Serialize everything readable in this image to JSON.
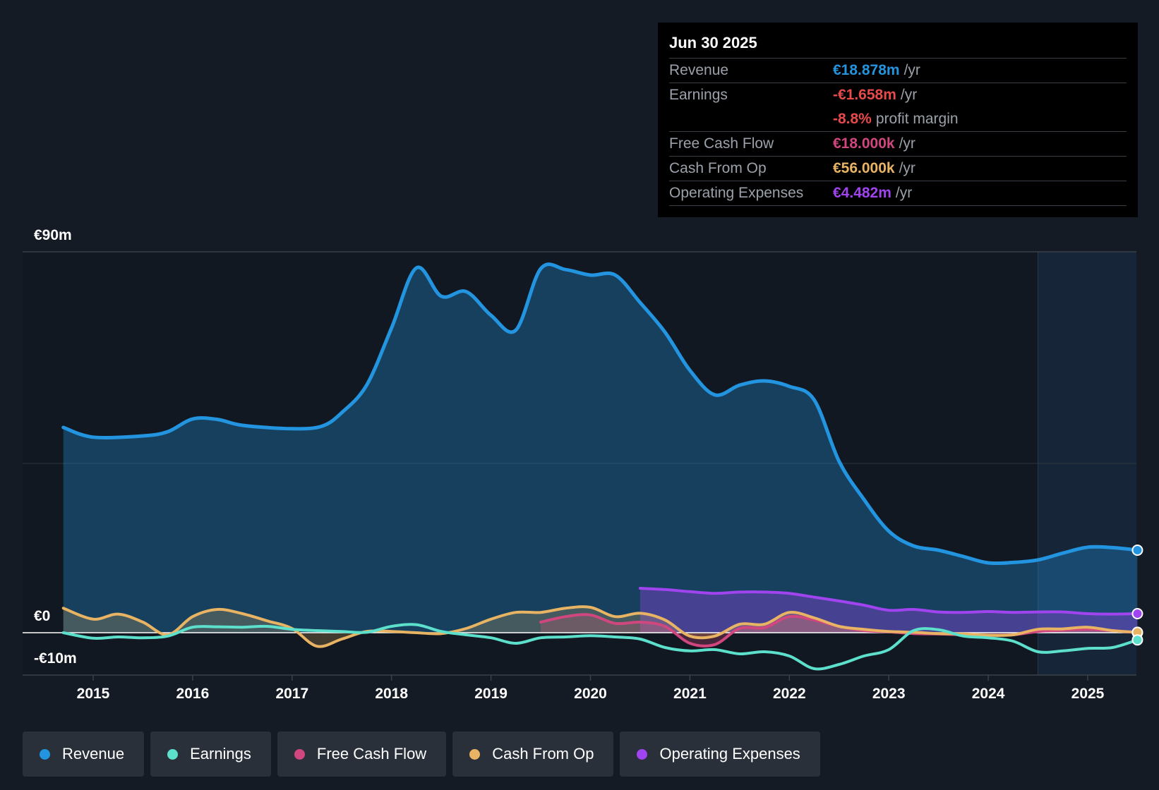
{
  "tooltip": {
    "date": "Jun 30 2025",
    "rows": [
      {
        "label": "Revenue",
        "value": "€18.878m",
        "unit": "/yr",
        "color": "#2394df"
      },
      {
        "label": "Earnings",
        "value": "-€1.658m",
        "unit": "/yr",
        "color": "#e64a4a"
      },
      {
        "label": "",
        "value": "-8.8%",
        "unit": "profit margin",
        "color": "#e64a4a"
      },
      {
        "label": "Free Cash Flow",
        "value": "€18.000k",
        "unit": "/yr",
        "color": "#d0477f"
      },
      {
        "label": "Cash From Op",
        "value": "€56.000k",
        "unit": "/yr",
        "color": "#e8b463"
      },
      {
        "label": "Operating Expenses",
        "value": "€4.482m",
        "unit": "/yr",
        "color": "#a044f0"
      }
    ]
  },
  "y_axis": {
    "top_label": "€90m",
    "zero_label": "€0",
    "bottom_label": "-€10m"
  },
  "legend": [
    {
      "label": "Revenue",
      "color": "#2394df"
    },
    {
      "label": "Earnings",
      "color": "#5ce0cc"
    },
    {
      "label": "Free Cash Flow",
      "color": "#d0477f"
    },
    {
      "label": "Cash From Op",
      "color": "#e8b463"
    },
    {
      "label": "Operating Expenses",
      "color": "#a044f0"
    }
  ],
  "chart_data": {
    "type": "line",
    "title": "",
    "xlabel": "",
    "ylabel": "",
    "ylim": [
      -10,
      90
    ],
    "x_range": [
      2014.5,
      2025.5
    ],
    "x_ticks": [
      "2015",
      "2016",
      "2017",
      "2018",
      "2019",
      "2020",
      "2021",
      "2022",
      "2023",
      "2024",
      "2025"
    ],
    "forecast_start": 2024.5,
    "series": [
      {
        "name": "Revenue",
        "color": "#2394df",
        "fill": true,
        "x": [
          2014.7,
          2015.0,
          2015.5,
          2015.75,
          2016.0,
          2016.25,
          2016.5,
          2017.0,
          2017.3,
          2017.5,
          2017.75,
          2018.0,
          2018.25,
          2018.5,
          2018.75,
          2019.0,
          2019.25,
          2019.5,
          2019.75,
          2020.0,
          2020.25,
          2020.5,
          2020.75,
          2021.0,
          2021.25,
          2021.5,
          2021.75,
          2022.0,
          2022.25,
          2022.5,
          2022.75,
          2023.0,
          2023.25,
          2023.5,
          2023.75,
          2024.0,
          2024.25,
          2024.5,
          2024.75,
          2025.0,
          2025.25,
          2025.5
        ],
        "values": [
          48.5,
          46.2,
          46.5,
          47.5,
          50.5,
          50.4,
          49,
          48.2,
          48.8,
          52,
          58.5,
          72,
          86.2,
          79.5,
          80.6,
          75,
          71.5,
          86,
          85.8,
          84.5,
          84.5,
          78,
          71,
          62,
          56.2,
          58.5,
          59.5,
          58.2,
          55,
          40.5,
          31.5,
          24,
          20.5,
          19.5,
          18,
          16.5,
          16.6,
          17.2,
          18.8,
          20.2,
          20.1,
          19.5
        ]
      },
      {
        "name": "Earnings",
        "color": "#5ce0cc",
        "fill": false,
        "x": [
          2014.7,
          2015.0,
          2015.25,
          2015.5,
          2015.75,
          2016.0,
          2016.25,
          2016.5,
          2016.75,
          2017.0,
          2017.25,
          2017.5,
          2017.75,
          2018.0,
          2018.25,
          2018.5,
          2018.75,
          2019.0,
          2019.25,
          2019.5,
          2019.75,
          2020.0,
          2020.25,
          2020.5,
          2020.75,
          2021.0,
          2021.25,
          2021.5,
          2021.75,
          2022.0,
          2022.25,
          2022.5,
          2022.75,
          2023.0,
          2023.25,
          2023.5,
          2023.75,
          2024.0,
          2024.25,
          2024.5,
          2024.75,
          2025.0,
          2025.25,
          2025.5
        ],
        "values": [
          0,
          -1.3,
          -1,
          -1.2,
          -0.8,
          1.3,
          1.4,
          1.3,
          1.5,
          0.8,
          0.5,
          0.3,
          0.1,
          1.5,
          1.9,
          0.3,
          -0.5,
          -1.2,
          -2.5,
          -1.2,
          -1,
          -0.7,
          -1,
          -1.5,
          -3.5,
          -4.3,
          -4,
          -5,
          -4.5,
          -5.5,
          -8.5,
          -7.5,
          -5.5,
          -4,
          0.5,
          0.7,
          -0.8,
          -1.2,
          -2,
          -4.5,
          -4.3,
          -3.7,
          -3.5,
          -1.7
        ]
      },
      {
        "name": "Free Cash Flow",
        "color": "#d0477f",
        "fill": true,
        "x": [
          2019.5,
          2019.75,
          2020.0,
          2020.25,
          2020.5,
          2020.75,
          2021.0,
          2021.25,
          2021.5,
          2021.75,
          2022.0,
          2022.25,
          2022.5,
          2022.75,
          2023.0,
          2023.25,
          2023.5,
          2023.75,
          2024.0,
          2024.25,
          2024.5,
          2024.75,
          2025.0,
          2025.25,
          2025.5
        ],
        "values": [
          2.5,
          3.8,
          4.2,
          2.2,
          2.5,
          1.5,
          -2.5,
          -2.8,
          1,
          1.2,
          3.8,
          3,
          1.5,
          0.5,
          0.2,
          -0.2,
          -0.3,
          -0.5,
          -0.6,
          -0.5,
          0.3,
          0.6,
          0.8,
          0.5,
          0
        ]
      },
      {
        "name": "Cash From Op",
        "color": "#e8b463",
        "fill": true,
        "x": [
          2014.7,
          2015.0,
          2015.25,
          2015.5,
          2015.75,
          2016.0,
          2016.25,
          2016.5,
          2016.75,
          2017.0,
          2017.25,
          2017.5,
          2017.75,
          2018.0,
          2018.25,
          2018.5,
          2018.75,
          2019.0,
          2019.25,
          2019.5,
          2019.75,
          2020.0,
          2020.25,
          2020.5,
          2020.75,
          2021.0,
          2021.25,
          2021.5,
          2021.75,
          2022.0,
          2022.25,
          2022.5,
          2022.75,
          2023.0,
          2023.25,
          2023.5,
          2023.75,
          2024.0,
          2024.25,
          2024.5,
          2024.75,
          2025.0,
          2025.25,
          2025.5
        ],
        "values": [
          5.8,
          3.2,
          4.4,
          2.5,
          -0.5,
          3.8,
          5.5,
          4.5,
          2.8,
          1,
          -3.2,
          -1.5,
          0.3,
          0.3,
          0,
          -0.2,
          1,
          3.2,
          4.8,
          4.8,
          5.8,
          6,
          3.8,
          4.6,
          3,
          -0.8,
          -0.8,
          2,
          2,
          4.8,
          3.5,
          1.5,
          0.8,
          0.3,
          0.1,
          -0.2,
          -0.3,
          -0.6,
          -0.5,
          0.8,
          0.9,
          1.3,
          0.5,
          0.1
        ]
      },
      {
        "name": "Operating Expenses",
        "color": "#a044f0",
        "fill": true,
        "x": [
          2020.5,
          2020.75,
          2021.0,
          2021.25,
          2021.5,
          2021.75,
          2022.0,
          2022.25,
          2022.5,
          2022.75,
          2023.0,
          2023.25,
          2023.5,
          2023.75,
          2024.0,
          2024.25,
          2024.5,
          2024.75,
          2025.0,
          2025.25,
          2025.5
        ],
        "values": [
          10.5,
          10.2,
          9.7,
          9.3,
          9.6,
          9.6,
          9.3,
          8.4,
          7.5,
          6.5,
          5.3,
          5.5,
          4.9,
          4.8,
          5,
          4.8,
          4.9,
          4.9,
          4.5,
          4.4,
          4.5
        ]
      }
    ]
  }
}
